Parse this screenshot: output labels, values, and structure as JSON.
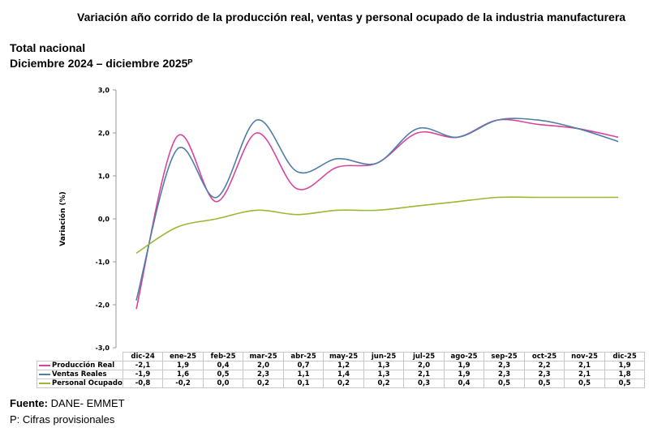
{
  "chart_data": {
    "type": "line",
    "title": "Variación año corrido de la producción real, ventas y personal ocupado de la industria manufacturera",
    "subtitle_1": "Total nacional",
    "subtitle_2": "Diciembre 2024 – diciembre 2025ᴾ",
    "ylabel": "Variación (%)",
    "ylim": [
      -3,
      3
    ],
    "yticks": [
      "3,0",
      "2,0",
      "1,0",
      "0,0",
      "-1,0",
      "-2,0",
      "-3,0"
    ],
    "categories": [
      "dic-24",
      "ene-25",
      "feb-25",
      "mar-25",
      "abr-25",
      "may-25",
      "jun-25",
      "jul-25",
      "ago-25",
      "sep-25",
      "oct-25",
      "nov-25",
      "dic-25"
    ],
    "series": [
      {
        "name": "Producción Real",
        "color": "#d9449b",
        "values": [
          -2.1,
          1.9,
          0.4,
          2.0,
          0.7,
          1.2,
          1.3,
          2.0,
          1.9,
          2.3,
          2.2,
          2.1,
          1.9
        ],
        "labels": [
          "-2,1",
          "1,9",
          "0,4",
          "2,0",
          "0,7",
          "1,2",
          "1,3",
          "2,0",
          "1,9",
          "2,3",
          "2,2",
          "2,1",
          "1,9"
        ]
      },
      {
        "name": "Ventas Reales",
        "color": "#4f7ea8",
        "values": [
          -1.9,
          1.6,
          0.5,
          2.3,
          1.1,
          1.4,
          1.3,
          2.1,
          1.9,
          2.3,
          2.3,
          2.1,
          1.8
        ],
        "labels": [
          "-1,9",
          "1,6",
          "0,5",
          "2,3",
          "1,1",
          "1,4",
          "1,3",
          "2,1",
          "1,9",
          "2,3",
          "2,3",
          "2,1",
          "1,8"
        ]
      },
      {
        "name": "Personal Ocupado",
        "color": "#9ab832",
        "values": [
          -0.8,
          -0.2,
          0.0,
          0.2,
          0.1,
          0.2,
          0.2,
          0.3,
          0.4,
          0.5,
          0.5,
          0.5,
          0.5
        ],
        "labels": [
          "-0,8",
          "-0,2",
          "0,0",
          "0,2",
          "0,1",
          "0,2",
          "0,2",
          "0,3",
          "0,4",
          "0,5",
          "0,5",
          "0,5",
          "0,5"
        ]
      }
    ]
  },
  "footer": {
    "source_label": "Fuente:",
    "source": " DANE- EMMET",
    "note": "P: Cifras provisionales"
  }
}
